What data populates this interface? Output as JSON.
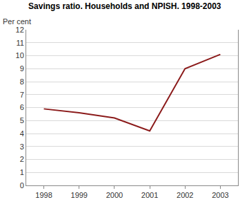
{
  "chart_data": {
    "type": "line",
    "title": "Savings ratio. Households and NPISH. 1998-2003",
    "y_label": "Per cent",
    "categories": [
      "1998",
      "1999",
      "2000",
      "2001",
      "2002",
      "2003"
    ],
    "values": [
      5.9,
      5.6,
      5.2,
      4.2,
      9.0,
      10.1
    ],
    "color": "#8b1a1a",
    "ylim": [
      0,
      12
    ],
    "yticks": [
      0,
      1,
      2,
      3,
      4,
      5,
      6,
      7,
      8,
      9,
      10,
      11,
      12
    ],
    "grid": true
  }
}
